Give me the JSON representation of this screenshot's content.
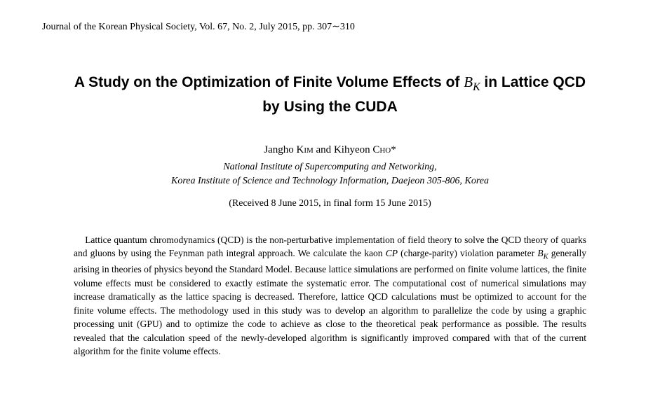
{
  "journal_header": "Journal of the Korean Physical Society, Vol. 67, No. 2, July 2015, pp. 307∼310",
  "title_part1": "A Study on the Optimization of Finite Volume Effects of ",
  "title_math_var": "B",
  "title_math_sub": "K",
  "title_part2": " in Lattice QCD",
  "title_line2": "by Using the CUDA",
  "author1_first": "Jangho ",
  "author1_last": "Kim",
  "author_sep": " and ",
  "author2_first": "Kihyeon ",
  "author2_last": "Cho",
  "author2_mark": "*",
  "affiliation_line1": "National Institute of Supercomputing and Networking,",
  "affiliation_line2": "Korea Institute of Science and Technology Information, Daejeon 305-806, Korea",
  "dates": "(Received 8 June 2015, in final form 15 June 2015)",
  "abstract_p1": "Lattice quantum chromodynamics (QCD) is the non-perturbative implementation of field theory to solve the QCD theory of quarks and gluons by using the Feynman path integral approach. We calculate the kaon ",
  "abstract_cp": "CP",
  "abstract_p2": " (charge-parity) violation parameter ",
  "abstract_bk_b": "B",
  "abstract_bk_k": "K",
  "abstract_p3": " generally arising in theories of physics beyond the Standard Model. Because lattice simulations are performed on finite volume lattices, the finite volume effects must be considered to exactly estimate the systematic error. The computational cost of numerical simulations may increase dramatically as the lattice spacing is decreased. Therefore, lattice QCD calculations must be optimized to account for the finite volume effects. The methodology used in this study was to develop an algorithm to parallelize the code by using a graphic processing unit (GPU) and to optimize the code to achieve as close to the theoretical peak performance as possible. The results revealed that the calculation speed of the newly-developed algorithm is significantly improved compared with that of the current algorithm for the finite volume effects."
}
